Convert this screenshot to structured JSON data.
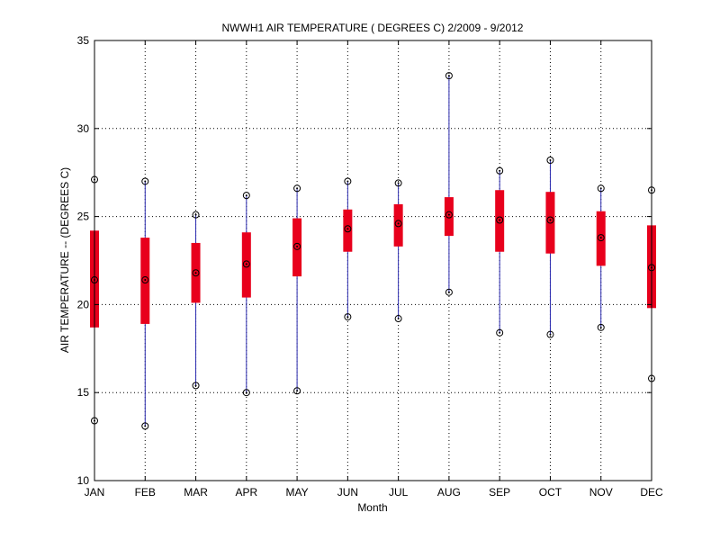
{
  "chart_data": {
    "type": "box",
    "title": "NWWH1  AIR TEMPERATURE ( DEGREES C) 2/2009 - 9/2012",
    "xlabel": "Month",
    "ylabel": "AIR TEMPERATURE -- (DEGREES C)",
    "ylim": [
      10,
      35
    ],
    "yticks": [
      10,
      15,
      20,
      25,
      30,
      35
    ],
    "grid": true,
    "categories": [
      "JAN",
      "FEB",
      "MAR",
      "APR",
      "MAY",
      "JUN",
      "JUL",
      "AUG",
      "SEP",
      "OCT",
      "NOV",
      "DEC"
    ],
    "boxes": [
      {
        "min": 13.4,
        "q1": 18.7,
        "median": 21.4,
        "q3": 24.2,
        "max": 27.1
      },
      {
        "min": 13.1,
        "q1": 18.9,
        "median": 21.4,
        "q3": 23.8,
        "max": 27.0
      },
      {
        "min": 15.4,
        "q1": 20.1,
        "median": 21.8,
        "q3": 23.5,
        "max": 25.1
      },
      {
        "min": 15.0,
        "q1": 20.4,
        "median": 22.3,
        "q3": 24.1,
        "max": 26.2
      },
      {
        "min": 15.1,
        "q1": 21.6,
        "median": 23.3,
        "q3": 24.9,
        "max": 26.6
      },
      {
        "min": 19.3,
        "q1": 23.0,
        "median": 24.3,
        "q3": 25.4,
        "max": 27.0
      },
      {
        "min": 19.2,
        "q1": 23.3,
        "median": 24.6,
        "q3": 25.7,
        "max": 26.9
      },
      {
        "min": 20.7,
        "q1": 23.9,
        "median": 25.1,
        "q3": 26.1,
        "max": 33.0
      },
      {
        "min": 18.4,
        "q1": 23.0,
        "median": 24.8,
        "q3": 26.5,
        "max": 27.6
      },
      {
        "min": 18.3,
        "q1": 22.9,
        "median": 24.8,
        "q3": 26.4,
        "max": 28.2
      },
      {
        "min": 18.7,
        "q1": 22.2,
        "median": 23.8,
        "q3": 25.3,
        "max": 26.6
      },
      {
        "min": 15.8,
        "q1": 19.8,
        "median": 22.1,
        "q3": 24.5,
        "max": 26.5
      }
    ],
    "colors": {
      "box": "#e8001c",
      "whisker": "#2b2bb0",
      "marker": "#000000",
      "grid": "#000000"
    }
  }
}
